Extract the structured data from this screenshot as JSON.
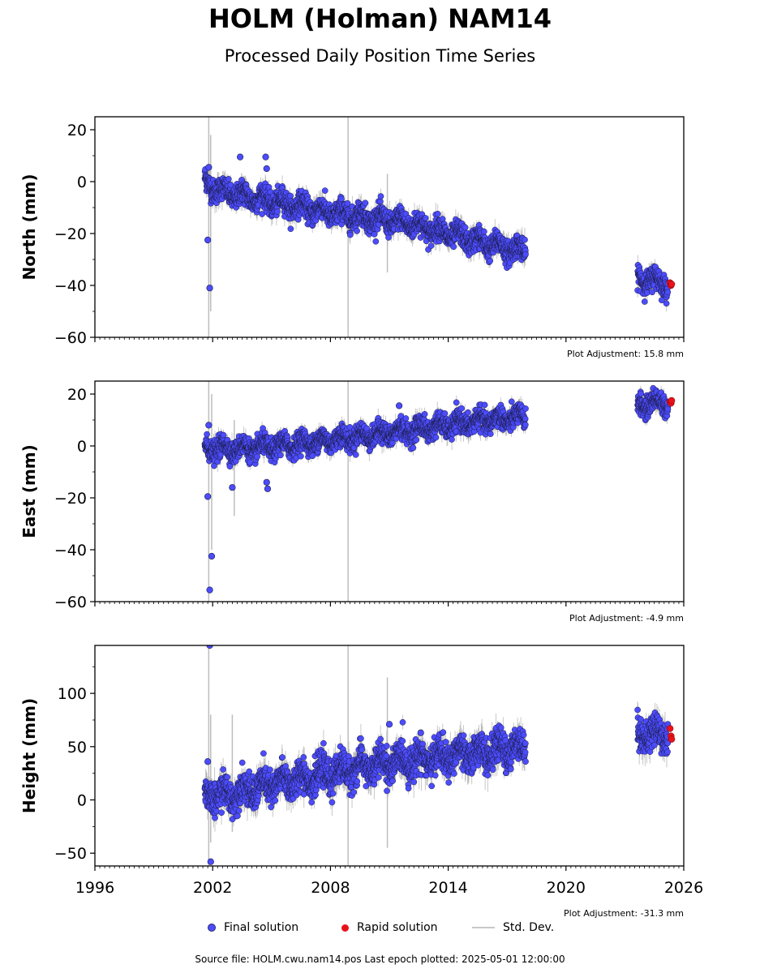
{
  "header": {
    "title": "HOLM (Holman) NAM14",
    "subtitle": "Processed Daily Position Time Series"
  },
  "legend": {
    "final_label": "Final solution",
    "rapid_label": "Rapid solution",
    "std_label": "Std. Dev."
  },
  "footer": {
    "source": "Source file: HOLM.cwu.nam14.pos  Last epoch plotted: 2025-05-01 12:00:00"
  },
  "colors": {
    "final": "#4c4cff",
    "final_edge": "#1a1a40",
    "rapid": "#e8121a",
    "std": "#bbbbbb"
  },
  "chart_data": [
    {
      "type": "scatter",
      "ylabel": "North (mm)",
      "adjustment": "Plot Adjustment: 15.8 mm",
      "xlim": [
        1996,
        2026
      ],
      "ylim": [
        -60,
        25
      ],
      "yticks": [
        20,
        0,
        -20,
        -40,
        -60
      ],
      "xticks": [
        1996,
        2002,
        2008,
        2014,
        2020,
        2026
      ],
      "show_xtick_labels": false,
      "trend": [
        [
          2001.6,
          0
        ],
        [
          2002.5,
          -4
        ],
        [
          2004,
          -6
        ],
        [
          2006,
          -9
        ],
        [
          2008,
          -12
        ],
        [
          2010,
          -14
        ],
        [
          2012,
          -16
        ],
        [
          2014,
          -20
        ],
        [
          2016,
          -24
        ],
        [
          2017.9,
          -27
        ],
        [
          2023.7,
          -37
        ],
        [
          2025.2,
          -39
        ]
      ],
      "scatter_sd": 2.2,
      "gaps": [
        [
          2017.95,
          2023.65
        ]
      ],
      "outliers": [
        [
          2001.75,
          -22.5
        ],
        [
          2001.85,
          -41
        ],
        [
          2003.4,
          9.5
        ],
        [
          2004.7,
          9.5
        ],
        [
          2004.75,
          5
        ],
        [
          2001.8,
          5.5
        ]
      ],
      "rapid": [
        [
          2025.3,
          -39
        ],
        [
          2025.35,
          -40
        ],
        [
          2025.38,
          -39.5
        ]
      ],
      "std_spikes": [
        [
          2001.8,
          -60,
          25
        ],
        [
          2001.9,
          -50,
          18
        ],
        [
          2008.9,
          -60,
          25
        ],
        [
          2010.9,
          -35,
          3
        ]
      ]
    },
    {
      "type": "scatter",
      "ylabel": "East (mm)",
      "adjustment": "Plot Adjustment: -4.9 mm",
      "xlim": [
        1996,
        2026
      ],
      "ylim": [
        -60,
        25
      ],
      "yticks": [
        20,
        0,
        -20,
        -40,
        -60
      ],
      "xticks": [
        1996,
        2002,
        2008,
        2014,
        2020,
        2026
      ],
      "show_xtick_labels": false,
      "trend": [
        [
          2001.6,
          -1
        ],
        [
          2002.5,
          -1
        ],
        [
          2004,
          -1
        ],
        [
          2006,
          0.5
        ],
        [
          2008,
          2.5
        ],
        [
          2010,
          4
        ],
        [
          2012,
          6
        ],
        [
          2014,
          8
        ],
        [
          2016,
          10
        ],
        [
          2017.9,
          11
        ],
        [
          2023.7,
          16
        ],
        [
          2025.2,
          17
        ]
      ],
      "scatter_sd": 2.0,
      "gaps": [
        [
          2017.95,
          2023.65
        ]
      ],
      "outliers": [
        [
          2001.75,
          -19.5
        ],
        [
          2001.85,
          -55.5
        ],
        [
          2001.95,
          -42.5
        ],
        [
          2001.8,
          8
        ],
        [
          2003.0,
          -16
        ],
        [
          2004.8,
          -16.5
        ],
        [
          2004.75,
          -14
        ],
        [
          2011.5,
          15.5
        ]
      ],
      "rapid": [
        [
          2025.3,
          17
        ],
        [
          2025.35,
          16.5
        ],
        [
          2025.38,
          17.5
        ]
      ],
      "std_spikes": [
        [
          2001.8,
          -60,
          25
        ],
        [
          2001.95,
          -40,
          20
        ],
        [
          2008.9,
          -60,
          25
        ],
        [
          2003.1,
          -27,
          10
        ]
      ]
    },
    {
      "type": "scatter",
      "ylabel": "Height (mm)",
      "adjustment": "Plot Adjustment: -31.3 mm",
      "xlim": [
        1996,
        2026
      ],
      "ylim": [
        -62,
        145
      ],
      "yticks": [
        100,
        50,
        0,
        -50
      ],
      "xticks": [
        1996,
        2002,
        2008,
        2014,
        2020,
        2026
      ],
      "show_xtick_labels": true,
      "trend": [
        [
          2001.6,
          5
        ],
        [
          2002.5,
          4
        ],
        [
          2004,
          10
        ],
        [
          2006,
          18
        ],
        [
          2008,
          25
        ],
        [
          2010,
          32
        ],
        [
          2012,
          37
        ],
        [
          2014,
          41
        ],
        [
          2016,
          45
        ],
        [
          2017.9,
          50
        ],
        [
          2023.7,
          62
        ],
        [
          2025.2,
          63
        ]
      ],
      "scatter_sd": 7.5,
      "gaps": [
        [
          2017.95,
          2023.65
        ]
      ],
      "outliers": [
        [
          2001.85,
          145
        ],
        [
          2001.9,
          -58
        ],
        [
          2001.75,
          36
        ],
        [
          2011.0,
          71
        ],
        [
          2012.6,
          63
        ]
      ],
      "rapid": [
        [
          2025.3,
          67
        ],
        [
          2025.35,
          60
        ],
        [
          2025.38,
          57
        ]
      ],
      "std_spikes": [
        [
          2001.8,
          -62,
          145
        ],
        [
          2001.9,
          -40,
          80
        ],
        [
          2008.9,
          -62,
          145
        ],
        [
          2010.9,
          -45,
          115
        ],
        [
          2003.0,
          -30,
          80
        ]
      ]
    }
  ]
}
